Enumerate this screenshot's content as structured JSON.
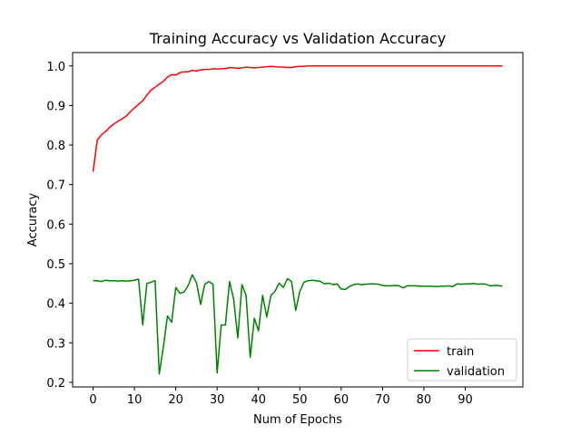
{
  "chart_data": {
    "type": "line",
    "title": "Training Accuracy vs Validation Accuracy",
    "xlabel": "Num of Epochs",
    "ylabel": "Accuracy",
    "xlim": [
      -4.95,
      103.95
    ],
    "ylim": [
      0.1883,
      1.0338
    ],
    "xticks": [
      0,
      10,
      20,
      30,
      40,
      50,
      60,
      70,
      80,
      90
    ],
    "yticks": [
      0.2,
      0.3,
      0.4,
      0.5,
      0.6,
      0.7,
      0.8,
      0.9,
      1.0
    ],
    "ytick_labels": [
      "0.2",
      "0.3",
      "0.4",
      "0.5",
      "0.6",
      "0.7",
      "0.8",
      "0.9",
      "1.0"
    ],
    "grid": false,
    "legend_position": "lower-right",
    "series": [
      {
        "name": "train",
        "color": "#ff0000",
        "values": [
          0.733,
          0.812,
          0.826,
          0.834,
          0.845,
          0.853,
          0.86,
          0.866,
          0.873,
          0.884,
          0.894,
          0.903,
          0.912,
          0.926,
          0.939,
          0.946,
          0.954,
          0.961,
          0.972,
          0.978,
          0.977,
          0.983,
          0.985,
          0.985,
          0.989,
          0.987,
          0.99,
          0.991,
          0.991,
          0.993,
          0.992,
          0.993,
          0.993,
          0.996,
          0.995,
          0.994,
          0.995,
          0.997,
          0.996,
          0.995,
          0.996,
          0.997,
          0.998,
          0.999,
          0.998,
          0.997,
          0.997,
          0.996,
          0.996,
          0.998,
          0.999,
          0.999,
          1.0,
          1.0,
          1.0,
          1.0,
          1.0,
          1.0,
          1.0,
          1.0,
          1.0,
          1.0,
          1.0,
          1.0,
          1.0,
          1.0,
          1.0,
          1.0,
          1.0,
          1.0,
          1.0,
          1.0,
          1.0,
          1.0,
          1.0,
          1.0,
          1.0,
          1.0,
          1.0,
          1.0,
          1.0,
          1.0,
          1.0,
          1.0,
          1.0,
          1.0,
          1.0,
          1.0,
          1.0,
          1.0,
          1.0,
          1.0,
          1.0,
          1.0,
          1.0,
          1.0,
          1.0,
          1.0,
          1.0,
          1.0
        ]
      },
      {
        "name": "validation",
        "color": "#008000",
        "values": [
          0.457,
          0.457,
          0.455,
          0.458,
          0.457,
          0.457,
          0.456,
          0.457,
          0.456,
          0.457,
          0.458,
          0.461,
          0.345,
          0.45,
          0.453,
          0.457,
          0.221,
          0.29,
          0.368,
          0.352,
          0.44,
          0.425,
          0.428,
          0.445,
          0.472,
          0.452,
          0.397,
          0.448,
          0.455,
          0.448,
          0.224,
          0.345,
          0.345,
          0.455,
          0.41,
          0.312,
          0.447,
          0.42,
          0.263,
          0.362,
          0.33,
          0.42,
          0.365,
          0.42,
          0.43,
          0.451,
          0.44,
          0.462,
          0.455,
          0.382,
          0.43,
          0.453,
          0.457,
          0.458,
          0.457,
          0.455,
          0.449,
          0.451,
          0.447,
          0.449,
          0.436,
          0.435,
          0.442,
          0.447,
          0.449,
          0.447,
          0.448,
          0.449,
          0.449,
          0.448,
          0.445,
          0.444,
          0.444,
          0.445,
          0.444,
          0.439,
          0.444,
          0.444,
          0.444,
          0.443,
          0.443,
          0.443,
          0.443,
          0.442,
          0.443,
          0.443,
          0.444,
          0.442,
          0.449,
          0.448,
          0.449,
          0.449,
          0.45,
          0.448,
          0.449,
          0.448,
          0.444,
          0.445,
          0.445,
          0.443
        ]
      }
    ]
  }
}
